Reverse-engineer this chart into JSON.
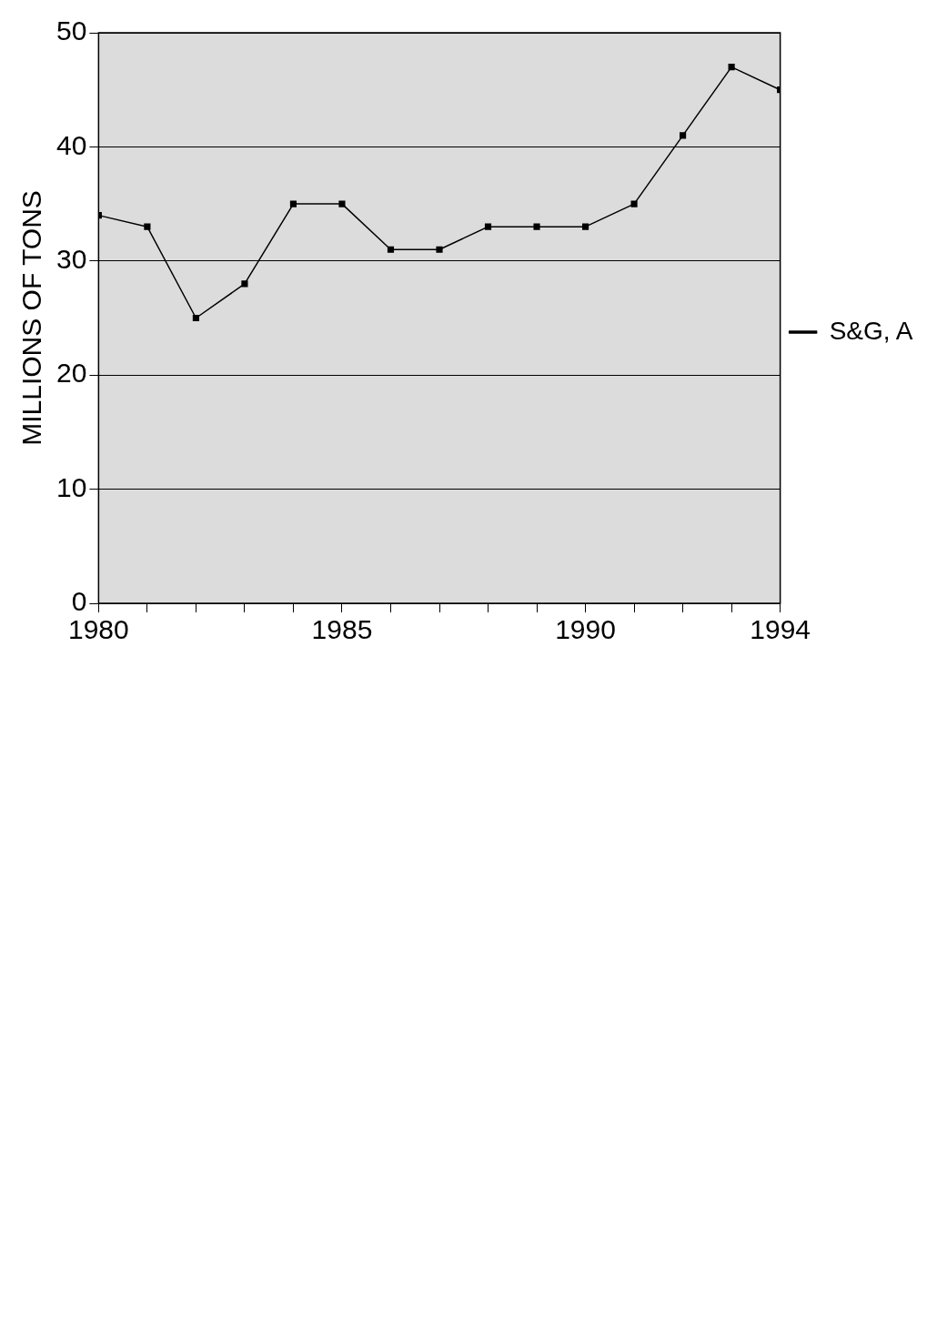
{
  "chart_data": {
    "type": "line",
    "ylabel": "MILLIONS OF TONS",
    "x": [
      1980,
      1981,
      1982,
      1983,
      1984,
      1985,
      1986,
      1987,
      1988,
      1989,
      1990,
      1991,
      1992,
      1993,
      1994
    ],
    "series": [
      {
        "name": "S&G, A",
        "color": "#000000",
        "values": [
          34,
          33,
          25,
          28,
          35,
          35,
          31,
          31,
          33,
          33,
          33,
          35,
          41,
          47,
          45
        ]
      }
    ],
    "xlim": [
      1980,
      1994
    ],
    "xticks": [
      1980,
      {
        "value": 1981,
        "label": null
      },
      {
        "value": 1982,
        "label": null
      },
      {
        "value": 1983,
        "label": null
      },
      {
        "value": 1984,
        "label": null
      },
      1985,
      {
        "value": 1986,
        "label": null
      },
      {
        "value": 1987,
        "label": null
      },
      {
        "value": 1988,
        "label": null
      },
      {
        "value": 1989,
        "label": null
      },
      1990,
      {
        "value": 1991,
        "label": null
      },
      {
        "value": 1992,
        "label": null
      },
      {
        "value": 1993,
        "label": null
      },
      1994
    ],
    "ylim": [
      0,
      50
    ],
    "yticks": [
      0,
      10,
      20,
      30,
      40,
      50
    ],
    "grid": "y",
    "legend": "right",
    "marker": "square",
    "line_style": "solid"
  }
}
